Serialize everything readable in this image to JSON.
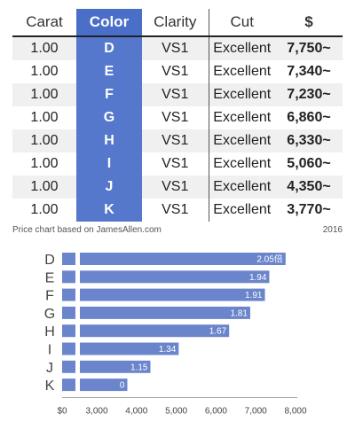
{
  "table": {
    "headers": [
      "Carat",
      "Color",
      "Clarity",
      "Cut",
      "$"
    ],
    "rows": [
      [
        "1.00",
        "D",
        "VS1",
        "Excellent",
        "7,750~"
      ],
      [
        "1.00",
        "E",
        "VS1",
        "Excellent",
        "7,340~"
      ],
      [
        "1.00",
        "F",
        "VS1",
        "Excellent",
        "7,230~"
      ],
      [
        "1.00",
        "G",
        "VS1",
        "Excellent",
        "6,860~"
      ],
      [
        "1.00",
        "H",
        "VS1",
        "Excellent",
        "6,330~"
      ],
      [
        "1.00",
        "I",
        "VS1",
        "Excellent",
        "5,060~"
      ],
      [
        "1.00",
        "J",
        "VS1",
        "Excellent",
        "4,350~"
      ],
      [
        "1.00",
        "K",
        "VS1",
        "Excellent",
        "3,770~"
      ]
    ]
  },
  "caption": {
    "source": "Price chart based on JamesAllen.com",
    "year": "2016"
  },
  "colors": {
    "accent": "#5577cc",
    "bar": "#6b85cc",
    "row_shade": "#f0f0f0"
  },
  "chart_data": {
    "type": "bar",
    "orientation": "horizontal",
    "categories": [
      "D",
      "E",
      "F",
      "G",
      "H",
      "I",
      "J",
      "K"
    ],
    "values": [
      7750,
      7340,
      7230,
      6860,
      6330,
      5060,
      4350,
      3770
    ],
    "data_labels": [
      "2.05倍",
      "1.94",
      "1.91",
      "1.81",
      "1.67",
      "1.34",
      "1.15",
      "0"
    ],
    "xlim": [
      0,
      8000
    ],
    "xticks": [
      0,
      3000,
      4000,
      5000,
      6000,
      7000,
      8000
    ],
    "xtick_labels": [
      "$0",
      "3,000",
      "4,000",
      "5,000",
      "6,000",
      "7,000",
      "8,000"
    ],
    "axis_break": true,
    "grid": false
  }
}
